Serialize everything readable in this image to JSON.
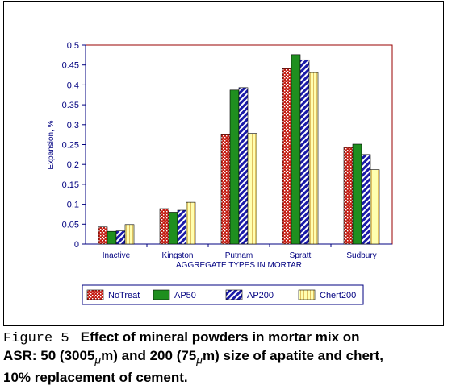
{
  "chart_data": {
    "type": "bar",
    "title": "",
    "xlabel": "AGGREGATE TYPES IN MORTAR",
    "ylabel": "Expansion,  %",
    "categories": [
      "Inactive",
      "Kingston",
      "Putnam",
      "Spratt",
      "Sudbury"
    ],
    "ylim": [
      0,
      0.5
    ],
    "yticks": [
      "0",
      "0.05",
      "0.1",
      "0.15",
      "0.2",
      "0.25",
      "0.3",
      "0.35",
      "0.4",
      "0.45",
      "0.5"
    ],
    "grid": false,
    "legend_position": "bottom",
    "series": [
      {
        "name": "NoTreat",
        "values": [
          0.043,
          0.089,
          0.275,
          0.441,
          0.243
        ],
        "fill": "#d4281c",
        "pattern": "dots"
      },
      {
        "name": "AP50",
        "values": [
          0.032,
          0.08,
          0.387,
          0.476,
          0.251
        ],
        "fill": "#1f8f1f",
        "pattern": "solid"
      },
      {
        "name": "AP200",
        "values": [
          0.033,
          0.085,
          0.393,
          0.463,
          0.225
        ],
        "fill": "#1a1aa8",
        "pattern": "diagonal"
      },
      {
        "name": "Chert200",
        "values": [
          0.049,
          0.105,
          0.278,
          0.431,
          0.187
        ],
        "fill": "#ffffb0",
        "pattern": "lines"
      }
    ],
    "colors": {
      "axis": "#000080",
      "plot_border": "#990000",
      "text": "#000080"
    }
  },
  "caption": {
    "label": "Figure 5",
    "text_line1": "Effect of mineral powders in mortar mix on",
    "text_line2_pre": "ASR: 50 (3005",
    "mu": "μ",
    "text_line2_mid": "m) and 200 (75",
    "text_line2_post": "m) size of apatite and chert,",
    "text_line3": "10% replacement of cement."
  }
}
